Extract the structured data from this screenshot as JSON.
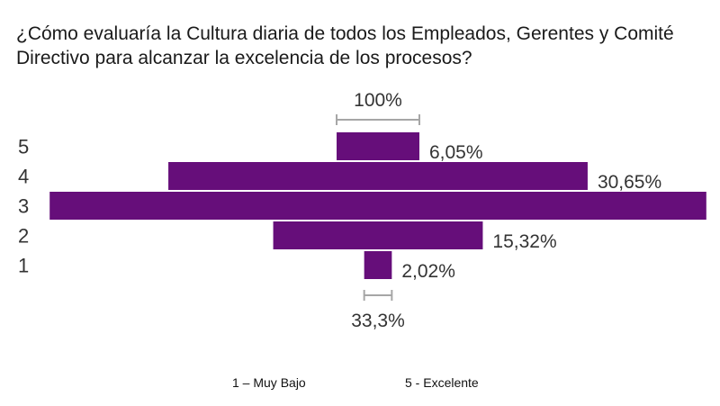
{
  "chart_data": {
    "type": "funnel",
    "title": "¿Cómo evaluaría la Cultura diaria de todos los Empleados, Gerentes y Comité Directivo para alcanzar la excelencia de los procesos?",
    "categories": [
      "5",
      "4",
      "3",
      "2",
      "1"
    ],
    "values": [
      6.05,
      30.65,
      48.0,
      15.32,
      2.02
    ],
    "labels": [
      "6,05%",
      "30,65%",
      "",
      "15,32%",
      "2,02%"
    ],
    "top_marker_label": "100%",
    "bottom_marker_label": "33,3%",
    "bar_color": "#660e7a",
    "marker_color": "#a6a6a6"
  },
  "legend": {
    "left": "1 – Muy Bajo",
    "right": "5 - Excelente"
  }
}
